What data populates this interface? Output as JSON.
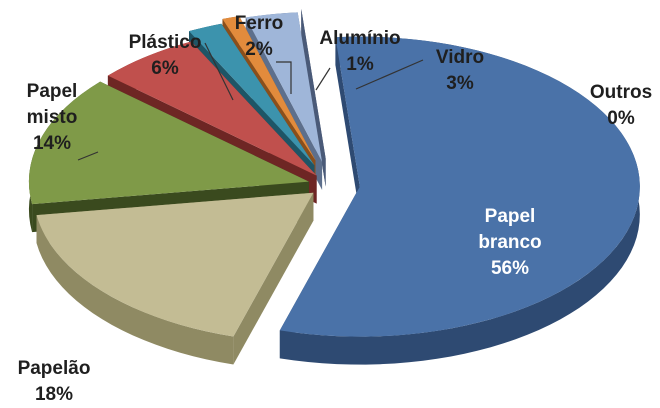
{
  "chart_data": {
    "type": "pie",
    "style": "3d-exploded",
    "title": "",
    "legend": "none",
    "slices": [
      {
        "name": "Papel branco",
        "value": 56,
        "label_lines": [
          "Papel",
          "branco",
          "56%"
        ],
        "color": "#4a72a8",
        "side_color": "#2e4a72"
      },
      {
        "name": "Papelão",
        "value": 18,
        "label_lines": [
          "Papelão",
          "18%"
        ],
        "color": "#c3bc94",
        "side_color": "#8f8a63"
      },
      {
        "name": "Papel misto",
        "value": 14,
        "label_lines": [
          "Papel",
          "misto",
          "14%"
        ],
        "color": "#7f9a48",
        "side_color": "#3a4a1e"
      },
      {
        "name": "Plástico",
        "value": 6,
        "label_lines": [
          "Plástico",
          "6%"
        ],
        "color": "#c0504d",
        "side_color": "#6e2624"
      },
      {
        "name": "Ferro",
        "value": 2,
        "label_lines": [
          "Ferro",
          "2%"
        ],
        "color": "#3c93ad",
        "side_color": "#1e5566"
      },
      {
        "name": "Alumínio",
        "value": 1,
        "label_lines": [
          "Alumínio",
          "1%"
        ],
        "color": "#e28b3c",
        "side_color": "#8a4f1c"
      },
      {
        "name": "Vidro",
        "value": 3,
        "label_lines": [
          "Vidro",
          "3%"
        ],
        "color": "#9fb6d9",
        "side_color": "#5d6f8c"
      },
      {
        "name": "Outros",
        "value": 0,
        "label_lines": [
          "Outros",
          "0%"
        ],
        "color": "#7a8fb5",
        "side_color": "#4a5a78"
      }
    ]
  }
}
